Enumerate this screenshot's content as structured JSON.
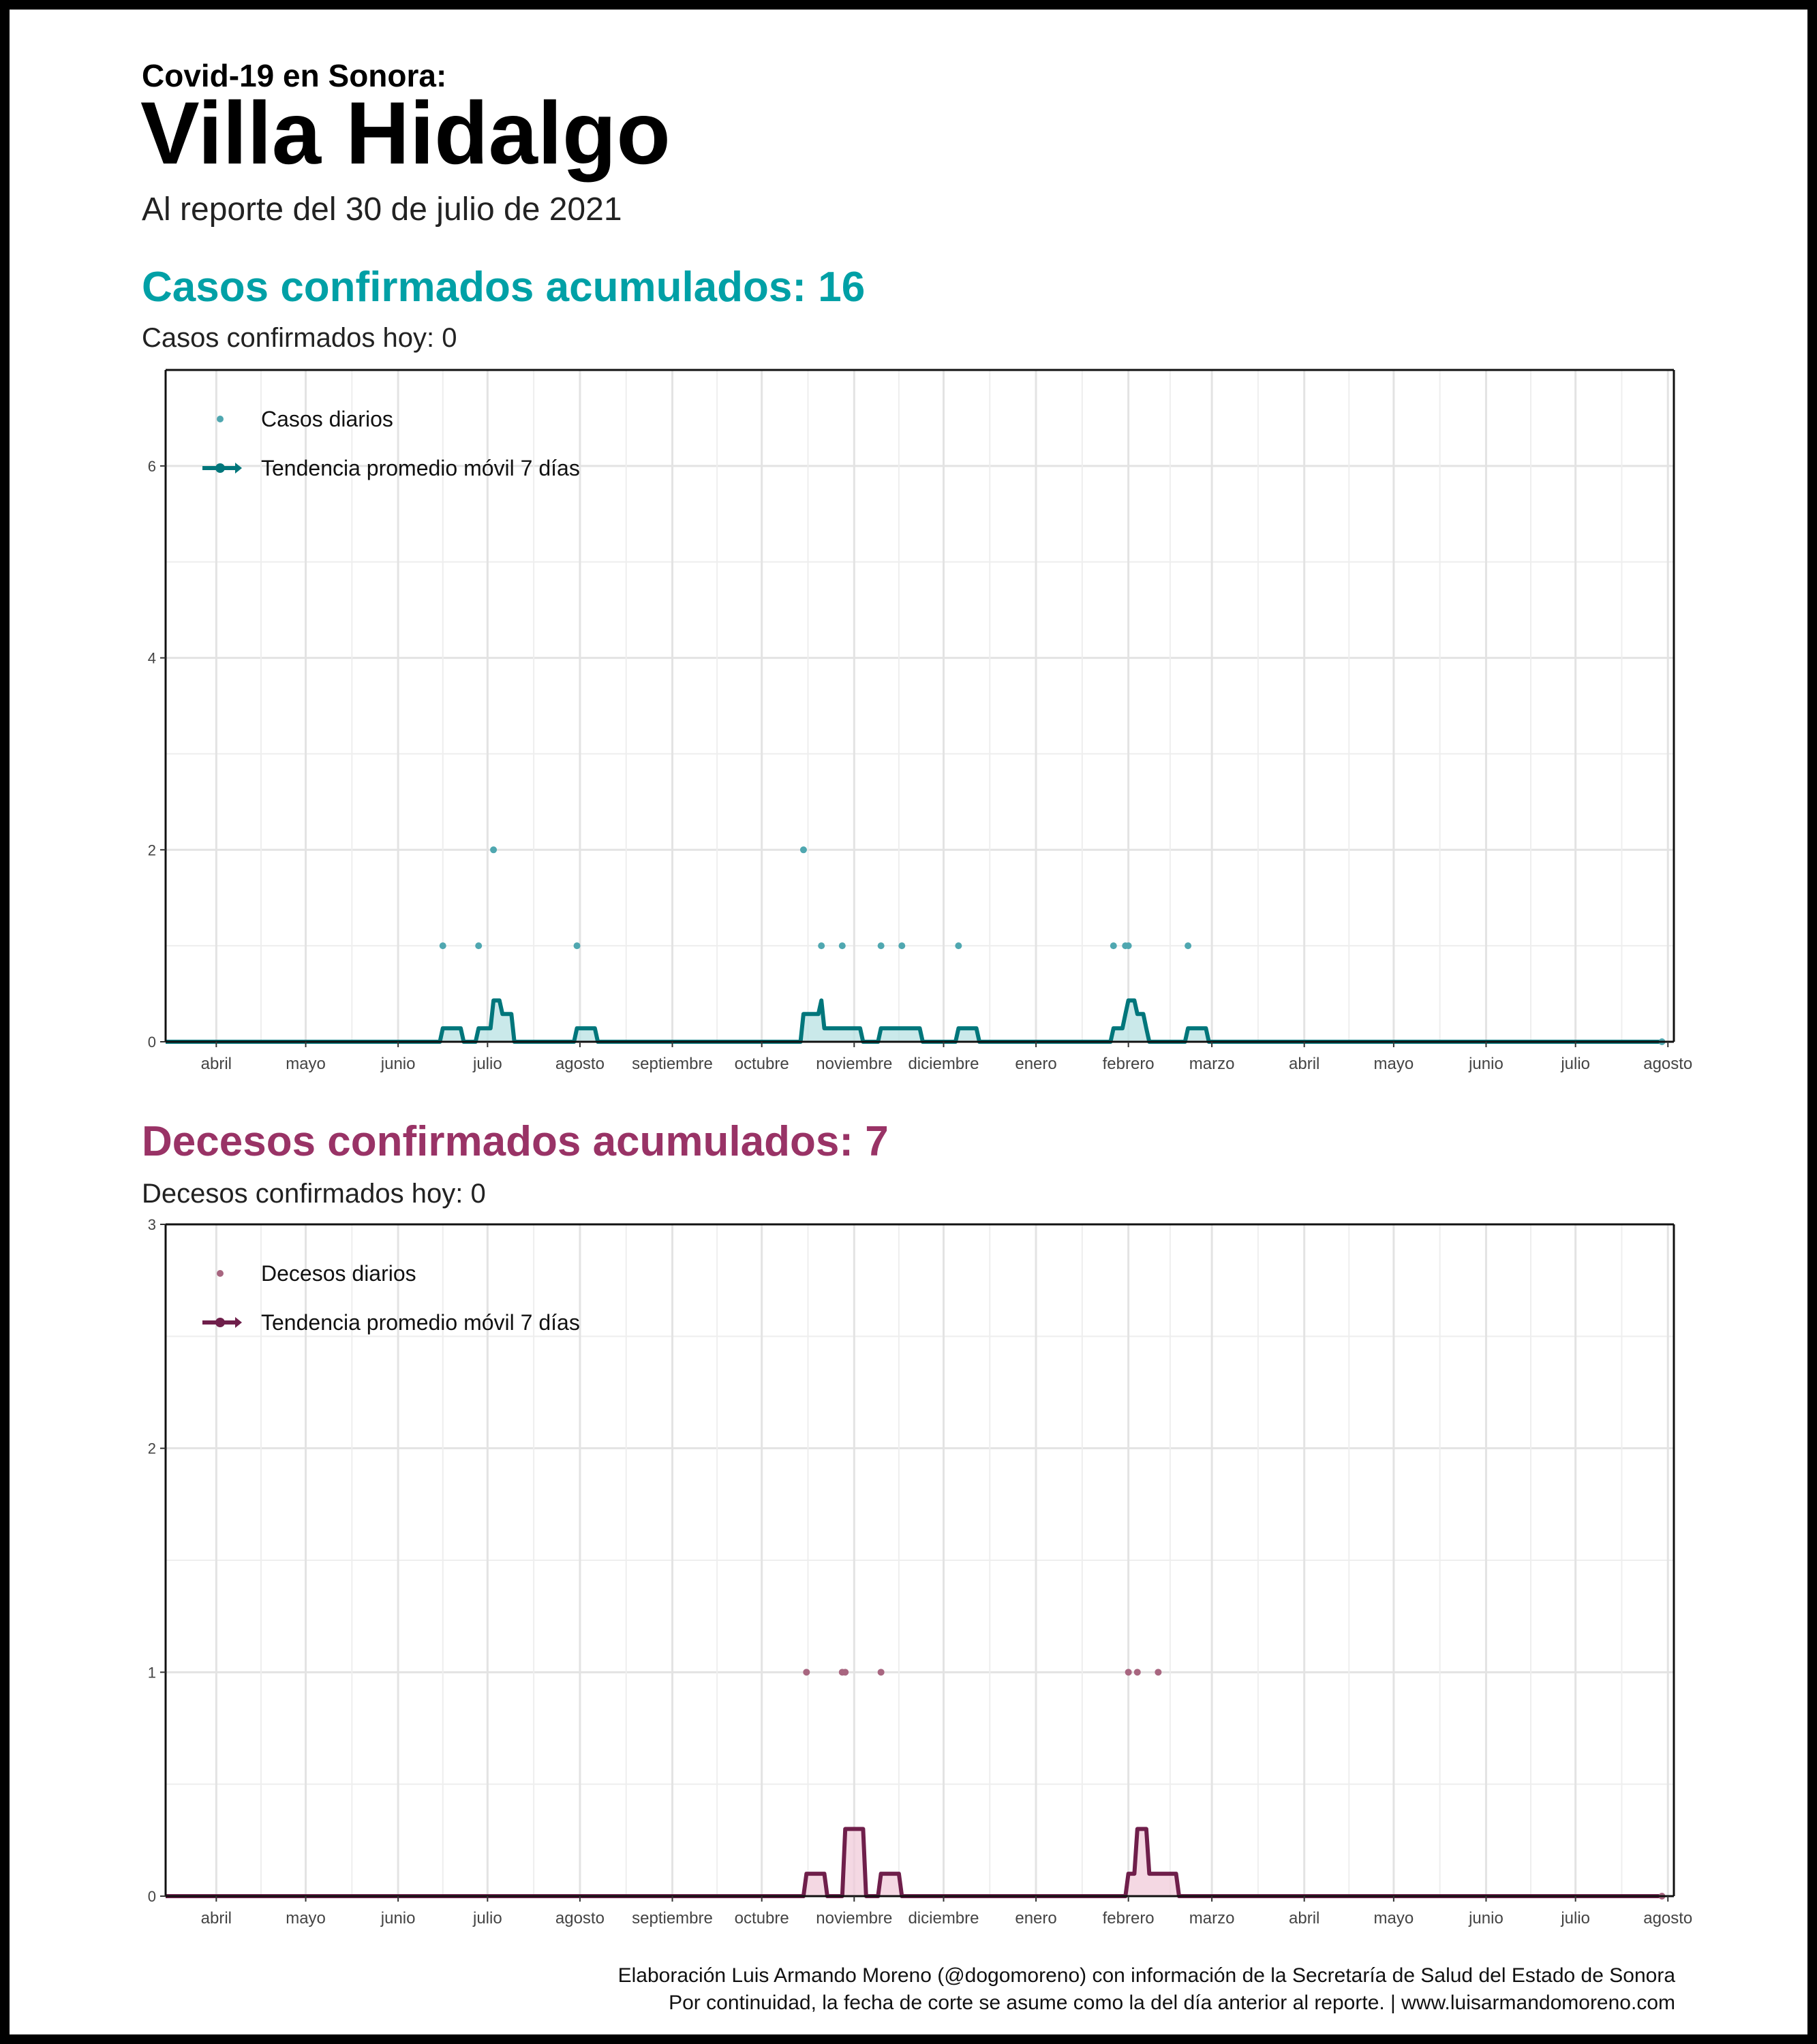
{
  "header": {
    "supertitle": "Covid-19 en Sonora:",
    "title": "Villa Hidalgo",
    "subtitle": "Al reporte del 30 de julio de 2021"
  },
  "cases": {
    "heading": "Casos confirmados acumulados: 16",
    "today": "Casos confirmados hoy: 0",
    "color_points": "#4fa7b0",
    "color_line": "#00767b",
    "color_fill": "#b8e1e3",
    "legend": {
      "points_label": "Casos diarios",
      "trend_label": "Tendencia promedio móvil 7 días"
    }
  },
  "deaths": {
    "heading": "Decesos confirmados acumulados: 7",
    "today": "Decesos confirmados hoy: 0",
    "color_points": "#a86680",
    "color_line": "#6f1f4b",
    "color_fill": "#f0cbd9",
    "legend": {
      "points_label": "Decesos diarios",
      "trend_label": "Tendencia promedio móvil 7 días"
    }
  },
  "chart_data": [
    {
      "type": "scatter",
      "xlabel": "",
      "ylabel": "",
      "ylim": [
        0,
        7
      ],
      "yticks": [
        0,
        2,
        4,
        6
      ],
      "xlim": [
        "2020-03-15",
        "2021-08-03"
      ],
      "grid": true,
      "legend_position": "top-left",
      "month_ticks": [
        {
          "date": "2020-04-01",
          "label": "abril"
        },
        {
          "date": "2020-05-01",
          "label": "mayo"
        },
        {
          "date": "2020-06-01",
          "label": "junio"
        },
        {
          "date": "2020-07-01",
          "label": "julio"
        },
        {
          "date": "2020-08-01",
          "label": "agosto"
        },
        {
          "date": "2020-09-01",
          "label": "septiembre"
        },
        {
          "date": "2020-10-01",
          "label": "octubre"
        },
        {
          "date": "2020-11-01",
          "label": "noviembre"
        },
        {
          "date": "2020-12-01",
          "label": "diciembre"
        },
        {
          "date": "2021-01-01",
          "label": "enero"
        },
        {
          "date": "2021-02-01",
          "label": "febrero"
        },
        {
          "date": "2021-03-01",
          "label": "marzo"
        },
        {
          "date": "2021-04-01",
          "label": "abril"
        },
        {
          "date": "2021-05-01",
          "label": "mayo"
        },
        {
          "date": "2021-06-01",
          "label": "junio"
        },
        {
          "date": "2021-07-01",
          "label": "julio"
        },
        {
          "date": "2021-08-01",
          "label": "agosto"
        }
      ],
      "series": [
        {
          "name": "Casos diarios",
          "points": [
            {
              "x": "2020-06-16",
              "y": 1
            },
            {
              "x": "2020-06-28",
              "y": 1
            },
            {
              "x": "2020-07-03",
              "y": 2
            },
            {
              "x": "2020-07-31",
              "y": 1
            },
            {
              "x": "2020-10-15",
              "y": 2
            },
            {
              "x": "2020-10-21",
              "y": 1
            },
            {
              "x": "2020-10-28",
              "y": 1
            },
            {
              "x": "2020-11-10",
              "y": 1
            },
            {
              "x": "2020-11-17",
              "y": 1
            },
            {
              "x": "2020-12-06",
              "y": 1
            },
            {
              "x": "2021-01-27",
              "y": 1
            },
            {
              "x": "2021-01-31",
              "y": 1
            },
            {
              "x": "2021-02-01",
              "y": 1
            },
            {
              "x": "2021-02-21",
              "y": 1
            },
            {
              "x": "2021-07-30",
              "y": 0
            }
          ]
        },
        {
          "name": "Tendencia promedio móvil 7 días",
          "points": [
            {
              "x": "2020-03-15",
              "y": 0
            },
            {
              "x": "2020-06-15",
              "y": 0
            },
            {
              "x": "2020-06-16",
              "y": 0.14
            },
            {
              "x": "2020-06-22",
              "y": 0.14
            },
            {
              "x": "2020-06-23",
              "y": 0
            },
            {
              "x": "2020-06-27",
              "y": 0
            },
            {
              "x": "2020-06-28",
              "y": 0.14
            },
            {
              "x": "2020-07-02",
              "y": 0.14
            },
            {
              "x": "2020-07-03",
              "y": 0.43
            },
            {
              "x": "2020-07-05",
              "y": 0.43
            },
            {
              "x": "2020-07-06",
              "y": 0.29
            },
            {
              "x": "2020-07-09",
              "y": 0.29
            },
            {
              "x": "2020-07-10",
              "y": 0
            },
            {
              "x": "2020-07-30",
              "y": 0
            },
            {
              "x": "2020-07-31",
              "y": 0.14
            },
            {
              "x": "2020-08-06",
              "y": 0.14
            },
            {
              "x": "2020-08-07",
              "y": 0
            },
            {
              "x": "2020-10-14",
              "y": 0
            },
            {
              "x": "2020-10-15",
              "y": 0.29
            },
            {
              "x": "2020-10-20",
              "y": 0.29
            },
            {
              "x": "2020-10-21",
              "y": 0.43
            },
            {
              "x": "2020-10-22",
              "y": 0.14
            },
            {
              "x": "2020-11-03",
              "y": 0.14
            },
            {
              "x": "2020-11-04",
              "y": 0
            },
            {
              "x": "2020-11-09",
              "y": 0
            },
            {
              "x": "2020-11-10",
              "y": 0.14
            },
            {
              "x": "2020-11-23",
              "y": 0.14
            },
            {
              "x": "2020-11-24",
              "y": 0
            },
            {
              "x": "2020-12-05",
              "y": 0
            },
            {
              "x": "2020-12-06",
              "y": 0.14
            },
            {
              "x": "2020-12-12",
              "y": 0.14
            },
            {
              "x": "2020-12-13",
              "y": 0
            },
            {
              "x": "2021-01-26",
              "y": 0
            },
            {
              "x": "2021-01-27",
              "y": 0.14
            },
            {
              "x": "2021-01-30",
              "y": 0.14
            },
            {
              "x": "2021-01-31",
              "y": 0.29
            },
            {
              "x": "2021-02-01",
              "y": 0.43
            },
            {
              "x": "2021-02-03",
              "y": 0.43
            },
            {
              "x": "2021-02-04",
              "y": 0.29
            },
            {
              "x": "2021-02-06",
              "y": 0.29
            },
            {
              "x": "2021-02-07",
              "y": 0.14
            },
            {
              "x": "2021-02-08",
              "y": 0
            },
            {
              "x": "2021-02-20",
              "y": 0
            },
            {
              "x": "2021-02-21",
              "y": 0.14
            },
            {
              "x": "2021-02-27",
              "y": 0.14
            },
            {
              "x": "2021-02-28",
              "y": 0
            },
            {
              "x": "2021-07-30",
              "y": 0
            }
          ]
        }
      ]
    },
    {
      "type": "scatter",
      "xlabel": "",
      "ylabel": "",
      "ylim": [
        0,
        3
      ],
      "yticks": [
        0,
        1,
        2,
        3
      ],
      "xlim": [
        "2020-03-15",
        "2021-08-03"
      ],
      "grid": true,
      "legend_position": "top-left",
      "month_ticks": [
        {
          "date": "2020-04-01",
          "label": "abril"
        },
        {
          "date": "2020-05-01",
          "label": "mayo"
        },
        {
          "date": "2020-06-01",
          "label": "junio"
        },
        {
          "date": "2020-07-01",
          "label": "julio"
        },
        {
          "date": "2020-08-01",
          "label": "agosto"
        },
        {
          "date": "2020-09-01",
          "label": "septiembre"
        },
        {
          "date": "2020-10-01",
          "label": "octubre"
        },
        {
          "date": "2020-11-01",
          "label": "noviembre"
        },
        {
          "date": "2020-12-01",
          "label": "diciembre"
        },
        {
          "date": "2021-01-01",
          "label": "enero"
        },
        {
          "date": "2021-02-01",
          "label": "febrero"
        },
        {
          "date": "2021-03-01",
          "label": "marzo"
        },
        {
          "date": "2021-04-01",
          "label": "abril"
        },
        {
          "date": "2021-05-01",
          "label": "mayo"
        },
        {
          "date": "2021-06-01",
          "label": "junio"
        },
        {
          "date": "2021-07-01",
          "label": "julio"
        },
        {
          "date": "2021-08-01",
          "label": "agosto"
        }
      ],
      "series": [
        {
          "name": "Decesos diarios",
          "points": [
            {
              "x": "2020-10-16",
              "y": 1
            },
            {
              "x": "2020-10-28",
              "y": 1
            },
            {
              "x": "2020-10-29",
              "y": 1
            },
            {
              "x": "2020-11-10",
              "y": 1
            },
            {
              "x": "2021-02-01",
              "y": 1
            },
            {
              "x": "2021-02-04",
              "y": 1
            },
            {
              "x": "2021-02-11",
              "y": 1
            },
            {
              "x": "2021-07-30",
              "y": 0
            }
          ]
        },
        {
          "name": "Tendencia promedio móvil 7 días",
          "points": [
            {
              "x": "2020-03-15",
              "y": 0
            },
            {
              "x": "2020-10-15",
              "y": 0
            },
            {
              "x": "2020-10-16",
              "y": 0.1
            },
            {
              "x": "2020-10-22",
              "y": 0.1
            },
            {
              "x": "2020-10-23",
              "y": 0
            },
            {
              "x": "2020-10-28",
              "y": 0
            },
            {
              "x": "2020-10-29",
              "y": 0.3
            },
            {
              "x": "2020-11-04",
              "y": 0.3
            },
            {
              "x": "2020-11-05",
              "y": 0
            },
            {
              "x": "2020-11-09",
              "y": 0
            },
            {
              "x": "2020-11-10",
              "y": 0.1
            },
            {
              "x": "2020-11-16",
              "y": 0.1
            },
            {
              "x": "2020-11-17",
              "y": 0
            },
            {
              "x": "2021-01-31",
              "y": 0
            },
            {
              "x": "2021-02-01",
              "y": 0.1
            },
            {
              "x": "2021-02-03",
              "y": 0.1
            },
            {
              "x": "2021-02-04",
              "y": 0.3
            },
            {
              "x": "2021-02-07",
              "y": 0.3
            },
            {
              "x": "2021-02-08",
              "y": 0.1
            },
            {
              "x": "2021-02-17",
              "y": 0.1
            },
            {
              "x": "2021-02-18",
              "y": 0
            },
            {
              "x": "2021-07-30",
              "y": 0
            }
          ]
        }
      ]
    }
  ],
  "footer": {
    "line1": "Elaboración Luis Armando Moreno (@dogomoreno) con información de la Secretaría de Salud del Estado de Sonora",
    "line2": "Por continuidad, la fecha de corte se asume como la del día anterior al reporte. | www.luisarmandomoreno.com"
  }
}
